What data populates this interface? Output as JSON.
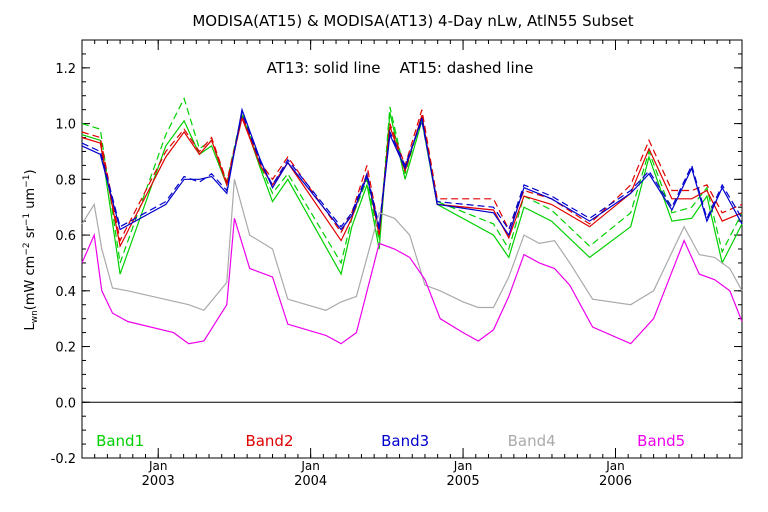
{
  "chart_data": {
    "type": "line",
    "title": "MODISA(AT15) & MODISA(AT13) 4-Day nLw, AtlN55 Subset",
    "annotation": "AT13: solid line    AT15: dashed line",
    "ylabel": "L_wn (mW cm^-2 sr^-1 um^-1)",
    "ylabel_parts": {
      "main": "L",
      "sub": "wn",
      "units_a": "(mW cm",
      "exp_a": "−2",
      "units_b": " sr",
      "exp_b": "−1",
      "units_c": " um",
      "exp_c": "−1",
      "close": ")"
    },
    "xlim": [
      2002.5,
      2006.83
    ],
    "ylim": [
      -0.2,
      1.3
    ],
    "y_ticks": [
      "-0.2",
      "0.0",
      "0.2",
      "0.4",
      "0.6",
      "0.8",
      "1.0",
      "1.2"
    ],
    "x_ticks": [
      {
        "month": "Jan",
        "year": "2003",
        "x": 2003.0
      },
      {
        "month": "Jan",
        "year": "2004",
        "x": 2004.0
      },
      {
        "month": "Jan",
        "year": "2005",
        "x": 2005.0
      },
      {
        "month": "Jan",
        "year": "2006",
        "x": 2006.0
      }
    ],
    "zero_line": true,
    "series": [
      {
        "name": "Band1",
        "color": "#00d000",
        "style": "solid",
        "x": [
          2002.5,
          2002.62,
          2002.75,
          2003.05,
          2003.17,
          2003.27,
          2003.35,
          2003.45,
          2003.55,
          2003.67,
          2003.75,
          2003.85,
          2004.2,
          2004.27,
          2004.37,
          2004.45,
          2004.52,
          2004.62,
          2004.73,
          2004.83,
          2005.2,
          2005.3,
          2005.4,
          2005.58,
          2005.83,
          2006.1,
          2006.22,
          2006.37,
          2006.5,
          2006.6,
          2006.7,
          2006.83
        ],
        "y": [
          0.96,
          0.94,
          0.46,
          0.92,
          1.01,
          0.89,
          0.92,
          0.78,
          1.03,
          0.84,
          0.72,
          0.8,
          0.46,
          0.63,
          0.78,
          0.55,
          1.04,
          0.8,
          1.01,
          0.71,
          0.6,
          0.52,
          0.7,
          0.65,
          0.52,
          0.63,
          0.88,
          0.65,
          0.66,
          0.74,
          0.5,
          0.64
        ]
      },
      {
        "name": "Band1",
        "color": "#00d000",
        "style": "dashed",
        "x": [
          2002.5,
          2002.62,
          2002.75,
          2003.05,
          2003.17,
          2003.27,
          2003.35,
          2003.45,
          2003.55,
          2003.67,
          2003.75,
          2003.85,
          2004.2,
          2004.27,
          2004.37,
          2004.45,
          2004.52,
          2004.62,
          2004.73,
          2004.83,
          2005.2,
          2005.3,
          2005.4,
          2005.58,
          2005.83,
          2006.1,
          2006.22,
          2006.37,
          2006.5,
          2006.6,
          2006.7,
          2006.83
        ],
        "y": [
          1.0,
          0.98,
          0.5,
          0.96,
          1.09,
          0.91,
          0.94,
          0.79,
          1.04,
          0.85,
          0.75,
          0.82,
          0.5,
          0.66,
          0.8,
          0.58,
          1.06,
          0.82,
          1.03,
          0.72,
          0.64,
          0.55,
          0.74,
          0.69,
          0.56,
          0.68,
          0.9,
          0.68,
          0.7,
          0.77,
          0.54,
          0.68
        ]
      },
      {
        "name": "Band2",
        "color": "#e00000",
        "style": "solid",
        "x": [
          2002.5,
          2002.62,
          2002.75,
          2003.05,
          2003.17,
          2003.27,
          2003.35,
          2003.45,
          2003.55,
          2003.67,
          2003.75,
          2003.85,
          2004.2,
          2004.27,
          2004.37,
          2004.45,
          2004.52,
          2004.62,
          2004.73,
          2004.83,
          2005.2,
          2005.3,
          2005.4,
          2005.58,
          2005.83,
          2006.1,
          2006.22,
          2006.37,
          2006.5,
          2006.6,
          2006.7,
          2006.83
        ],
        "y": [
          0.95,
          0.93,
          0.56,
          0.88,
          0.97,
          0.89,
          0.94,
          0.78,
          1.02,
          0.85,
          0.78,
          0.86,
          0.58,
          0.66,
          0.82,
          0.6,
          0.99,
          0.83,
          1.03,
          0.71,
          0.69,
          0.59,
          0.74,
          0.71,
          0.63,
          0.75,
          0.91,
          0.73,
          0.73,
          0.76,
          0.65,
          0.68
        ]
      },
      {
        "name": "Band2",
        "color": "#e00000",
        "style": "dashed",
        "x": [
          2002.5,
          2002.62,
          2002.75,
          2003.05,
          2003.17,
          2003.27,
          2003.35,
          2003.45,
          2003.55,
          2003.67,
          2003.75,
          2003.85,
          2004.2,
          2004.27,
          2004.37,
          2004.45,
          2004.52,
          2004.62,
          2004.73,
          2004.83,
          2005.2,
          2005.3,
          2005.4,
          2005.58,
          2005.83,
          2006.1,
          2006.22,
          2006.37,
          2006.5,
          2006.6,
          2006.7,
          2006.83
        ],
        "y": [
          0.97,
          0.95,
          0.58,
          0.9,
          0.98,
          0.9,
          0.95,
          0.79,
          1.03,
          0.86,
          0.8,
          0.88,
          0.61,
          0.68,
          0.85,
          0.62,
          1.0,
          0.85,
          1.05,
          0.73,
          0.73,
          0.62,
          0.76,
          0.73,
          0.64,
          0.78,
          0.94,
          0.76,
          0.76,
          0.78,
          0.68,
          0.71
        ]
      },
      {
        "name": "Band3",
        "color": "#0000cc",
        "style": "solid",
        "x": [
          2002.5,
          2002.62,
          2002.75,
          2003.05,
          2003.17,
          2003.27,
          2003.35,
          2003.45,
          2003.55,
          2003.67,
          2003.75,
          2003.85,
          2004.2,
          2004.27,
          2004.37,
          2004.45,
          2004.52,
          2004.62,
          2004.73,
          2004.83,
          2005.2,
          2005.3,
          2005.4,
          2005.58,
          2005.83,
          2006.1,
          2006.22,
          2006.37,
          2006.5,
          2006.6,
          2006.7,
          2006.83
        ],
        "y": [
          0.92,
          0.89,
          0.62,
          0.71,
          0.8,
          0.8,
          0.81,
          0.75,
          1.05,
          0.87,
          0.77,
          0.86,
          0.62,
          0.67,
          0.81,
          0.62,
          0.96,
          0.84,
          1.02,
          0.71,
          0.68,
          0.6,
          0.77,
          0.73,
          0.65,
          0.75,
          0.82,
          0.69,
          0.84,
          0.65,
          0.77,
          0.64
        ]
      },
      {
        "name": "Band3",
        "color": "#0000cc",
        "style": "dashed",
        "x": [
          2002.5,
          2002.62,
          2002.75,
          2003.05,
          2003.17,
          2003.27,
          2003.35,
          2003.45,
          2003.55,
          2003.67,
          2003.75,
          2003.85,
          2004.2,
          2004.27,
          2004.37,
          2004.45,
          2004.52,
          2004.62,
          2004.73,
          2004.83,
          2005.2,
          2005.3,
          2005.4,
          2005.58,
          2005.83,
          2006.1,
          2006.22,
          2006.37,
          2006.5,
          2006.6,
          2006.7,
          2006.83
        ],
        "y": [
          0.93,
          0.9,
          0.63,
          0.72,
          0.81,
          0.79,
          0.82,
          0.76,
          1.04,
          0.86,
          0.78,
          0.87,
          0.63,
          0.68,
          0.82,
          0.63,
          0.97,
          0.85,
          1.01,
          0.72,
          0.7,
          0.62,
          0.78,
          0.74,
          0.66,
          0.76,
          0.83,
          0.7,
          0.85,
          0.66,
          0.78,
          0.66
        ]
      },
      {
        "name": "Band4",
        "color": "#aaaaaa",
        "style": "solid",
        "x": [
          2002.5,
          2002.58,
          2002.63,
          2002.7,
          2002.8,
          2003.2,
          2003.3,
          2003.45,
          2003.5,
          2003.6,
          2003.75,
          2003.85,
          2004.1,
          2004.2,
          2004.3,
          2004.45,
          2004.55,
          2004.65,
          2004.75,
          2004.85,
          2005.0,
          2005.1,
          2005.2,
          2005.3,
          2005.4,
          2005.5,
          2005.6,
          2005.7,
          2005.85,
          2006.1,
          2006.25,
          2006.45,
          2006.55,
          2006.65,
          2006.75,
          2006.83
        ],
        "y": [
          0.64,
          0.71,
          0.55,
          0.41,
          0.4,
          0.35,
          0.33,
          0.43,
          0.8,
          0.6,
          0.55,
          0.37,
          0.33,
          0.36,
          0.38,
          0.68,
          0.66,
          0.6,
          0.42,
          0.4,
          0.36,
          0.34,
          0.34,
          0.45,
          0.6,
          0.57,
          0.58,
          0.5,
          0.37,
          0.35,
          0.4,
          0.63,
          0.53,
          0.52,
          0.48,
          0.4
        ]
      },
      {
        "name": "Band5",
        "color": "#ee00ee",
        "style": "solid",
        "x": [
          2002.5,
          2002.58,
          2002.63,
          2002.7,
          2002.8,
          2003.1,
          2003.2,
          2003.3,
          2003.45,
          2003.5,
          2003.6,
          2003.75,
          2003.85,
          2004.1,
          2004.2,
          2004.3,
          2004.45,
          2004.55,
          2004.65,
          2004.75,
          2004.85,
          2005.0,
          2005.1,
          2005.2,
          2005.3,
          2005.4,
          2005.5,
          2005.6,
          2005.7,
          2005.85,
          2006.1,
          2006.25,
          2006.45,
          2006.55,
          2006.65,
          2006.75,
          2006.83
        ],
        "y": [
          0.5,
          0.6,
          0.4,
          0.32,
          0.29,
          0.25,
          0.21,
          0.22,
          0.35,
          0.66,
          0.48,
          0.45,
          0.28,
          0.24,
          0.21,
          0.25,
          0.57,
          0.55,
          0.52,
          0.44,
          0.3,
          0.25,
          0.22,
          0.26,
          0.38,
          0.53,
          0.5,
          0.48,
          0.42,
          0.27,
          0.21,
          0.3,
          0.58,
          0.46,
          0.44,
          0.4,
          0.29
        ]
      }
    ],
    "band_labels": [
      {
        "text": "Band1",
        "color": "#00d000",
        "x": 2002.75
      },
      {
        "text": "Band2",
        "color": "#e00000",
        "x": 2003.73
      },
      {
        "text": "Band3",
        "color": "#0000cc",
        "x": 2004.62
      },
      {
        "text": "Band4",
        "color": "#aaaaaa",
        "x": 2005.45
      },
      {
        "text": "Band5",
        "color": "#ee00ee",
        "x": 2006.3
      }
    ]
  }
}
